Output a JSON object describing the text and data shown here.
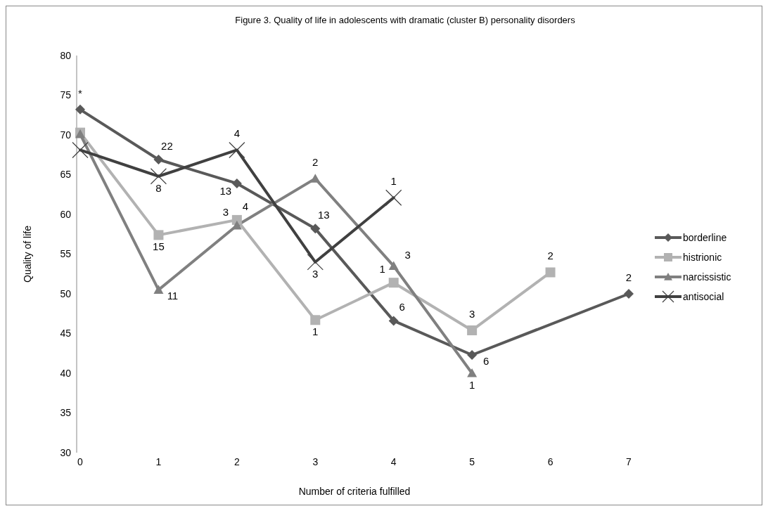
{
  "chart_data": {
    "type": "line",
    "title": "Figure 3.  Quality of life in adolescents with dramatic (cluster B) personality disorders",
    "xlabel": "Number of criteria fulfilled",
    "ylabel": "Quality of life",
    "categories": [
      "0",
      "1",
      "2",
      "3",
      "4",
      "5",
      "6",
      "7"
    ],
    "ylim": [
      30,
      80
    ],
    "yticks": [
      30,
      35,
      40,
      45,
      50,
      55,
      60,
      65,
      70,
      75,
      80
    ],
    "grid": false,
    "legend": "right",
    "line_style": "solid",
    "series": [
      {
        "name": "borderline",
        "color": "#595959",
        "marker": "diamond",
        "values": [
          73.2,
          66.9,
          63.9,
          58.2,
          46.6,
          42.3,
          null,
          50.0
        ]
      },
      {
        "name": "histrionic",
        "color": "#b2b2b2",
        "marker": "square",
        "values": [
          70.3,
          57.4,
          59.3,
          46.7,
          51.4,
          45.4,
          52.7,
          null
        ]
      },
      {
        "name": "narcissistic",
        "color": "#808080",
        "marker": "triangle",
        "values": [
          70.1,
          50.5,
          58.6,
          64.5,
          53.5,
          40.0,
          null,
          null
        ]
      },
      {
        "name": "antisocial",
        "color": "#404040",
        "marker": "cross",
        "values": [
          68.1,
          64.8,
          68.1,
          54.0,
          62.1,
          null,
          null,
          null
        ]
      }
    ],
    "annotations": [
      {
        "text": "*",
        "x": "0",
        "y": 73.2
      },
      {
        "text": "22",
        "x": "1",
        "y": 66.9
      },
      {
        "text": "13",
        "x": "2",
        "y": 63.9
      },
      {
        "text": "13",
        "x": "3",
        "y": 58.2
      },
      {
        "text": "6",
        "x": "4",
        "y": 46.6
      },
      {
        "text": "6",
        "x": "5",
        "y": 42.3
      },
      {
        "text": "2",
        "x": "7",
        "y": 50.0
      },
      {
        "text": "15",
        "x": "1",
        "y": 57.4
      },
      {
        "text": "4",
        "x": "2",
        "y": 59.3
      },
      {
        "text": "1",
        "x": "3",
        "y": 46.7
      },
      {
        "text": "1",
        "x": "4",
        "y": 51.4
      },
      {
        "text": "3",
        "x": "5",
        "y": 45.4
      },
      {
        "text": "2",
        "x": "6",
        "y": 52.7
      },
      {
        "text": "11",
        "x": "1",
        "y": 50.5
      },
      {
        "text": "3",
        "x": "2",
        "y": 58.6
      },
      {
        "text": "2",
        "x": "3",
        "y": 64.5
      },
      {
        "text": "3",
        "x": "4",
        "y": 53.5
      },
      {
        "text": "1",
        "x": "5",
        "y": 40.0
      },
      {
        "text": "8",
        "x": "1",
        "y": 64.8
      },
      {
        "text": "4",
        "x": "2",
        "y": 68.1
      },
      {
        "text": "3",
        "x": "3",
        "y": 54.0
      },
      {
        "text": "1",
        "x": "4",
        "y": 62.1
      }
    ]
  }
}
